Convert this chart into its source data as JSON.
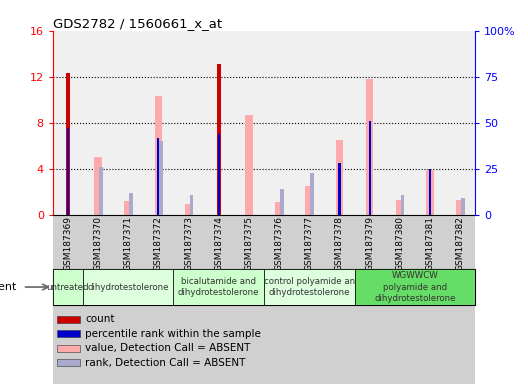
{
  "title": "GDS2782 / 1560661_x_at",
  "samples": [
    "GSM187369",
    "GSM187370",
    "GSM187371",
    "GSM187372",
    "GSM187373",
    "GSM187374",
    "GSM187375",
    "GSM187376",
    "GSM187377",
    "GSM187378",
    "GSM187379",
    "GSM187380",
    "GSM187381",
    "GSM187382"
  ],
  "count": [
    12.3,
    0,
    0,
    0,
    0,
    13.1,
    0,
    0,
    0,
    0,
    0,
    0,
    0,
    0
  ],
  "percentile_rank": [
    47,
    0,
    0,
    42,
    0,
    44,
    0,
    0,
    0,
    28,
    51,
    0,
    25,
    0
  ],
  "value_absent": [
    0,
    5.0,
    1.2,
    10.3,
    1.0,
    0,
    8.7,
    1.1,
    2.5,
    6.5,
    11.8,
    1.3,
    3.9,
    1.3
  ],
  "rank_absent": [
    0,
    26,
    12,
    40,
    11,
    0,
    0,
    14,
    23,
    0,
    0,
    11,
    0,
    9
  ],
  "groups": [
    {
      "label": "untreated",
      "start": 0,
      "end": 0,
      "color": "#ccffcc"
    },
    {
      "label": "dihydrotestolerone",
      "start": 1,
      "end": 3,
      "color": "#ddffdd"
    },
    {
      "label": "bicalutamide and\ndihydrotestolerone",
      "start": 4,
      "end": 6,
      "color": "#ccffcc"
    },
    {
      "label": "control polyamide an\ndihydrotestolerone",
      "start": 7,
      "end": 9,
      "color": "#ddffdd"
    },
    {
      "label": "WGWWCW\npolyamide and\ndihydrotestolerone",
      "start": 10,
      "end": 13,
      "color": "#66dd66"
    }
  ],
  "ylim_left": [
    0,
    16
  ],
  "ylim_right": [
    0,
    100
  ],
  "yticks_left": [
    0,
    4,
    8,
    12,
    16
  ],
  "ytick_labels_left": [
    "0",
    "4",
    "8",
    "12",
    "16"
  ],
  "yticks_right_pct": [
    0,
    25,
    50,
    75,
    100
  ],
  "ytick_labels_right": [
    "0",
    "25",
    "50",
    "75",
    "100%"
  ],
  "color_count": "#cc0000",
  "color_percentile": "#0000cc",
  "color_value_absent": "#ffaaaa",
  "color_rank_absent": "#aaaacc",
  "bg_plot": "#f0f0f0",
  "bg_xtick": "#d0d0d0",
  "legend_items": [
    {
      "color": "#cc0000",
      "label": "count"
    },
    {
      "color": "#0000cc",
      "label": "percentile rank within the sample"
    },
    {
      "color": "#ffaaaa",
      "label": "value, Detection Call = ABSENT"
    },
    {
      "color": "#aaaacc",
      "label": "rank, Detection Call = ABSENT"
    }
  ]
}
